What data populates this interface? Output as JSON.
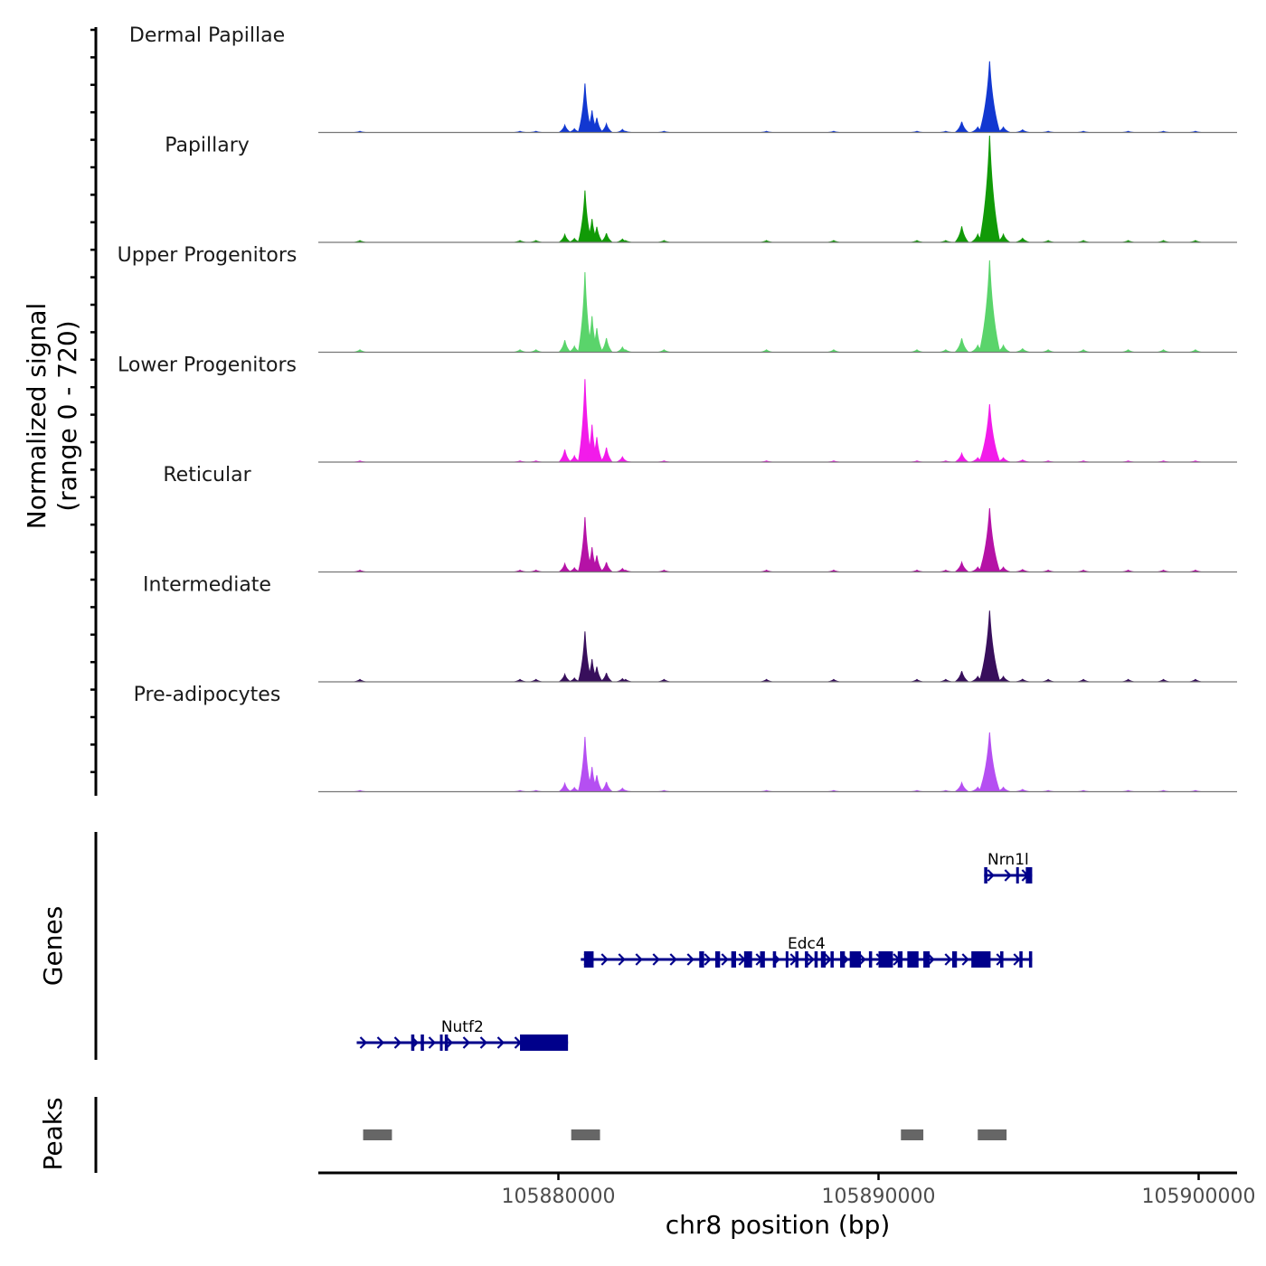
{
  "chart_data": {
    "type": "area",
    "title": "",
    "region": "chr8",
    "xlabel": "chr8 position (bp)",
    "xlim": [
      105872500,
      105901200
    ],
    "xticks": [
      105880000,
      105890000,
      105900000
    ],
    "xtick_labels": [
      "105880000",
      "105890000",
      "105900000"
    ],
    "coverage_ylabel": [
      "Normalized signal",
      "(range 0 - 720)"
    ],
    "ylim": [
      0,
      720
    ],
    "tracks": [
      {
        "name": "Dermal Papillae",
        "color": "#1238d1",
        "peak1": 330,
        "peak2": 480
      },
      {
        "name": "Papillary",
        "color": "#119a07",
        "peak1": 350,
        "peak2": 720
      },
      {
        "name": "Upper Progenitors",
        "color": "#5ad46b",
        "peak1": 540,
        "peak2": 620
      },
      {
        "name": "Lower Progenitors",
        "color": "#f21bea",
        "peak1": 560,
        "peak2": 390
      },
      {
        "name": "Reticular",
        "color": "#b512a6",
        "peak1": 370,
        "peak2": 430
      },
      {
        "name": "Intermediate",
        "color": "#380f5c",
        "peak1": 340,
        "peak2": 480
      },
      {
        "name": "Pre-adipocytes",
        "color": "#b54ff2",
        "peak1": 370,
        "peak2": 400
      }
    ],
    "genes_label": "Genes",
    "peaks_label": "Peaks",
    "genes": [
      {
        "name": "Nrn1l",
        "start": 105893300,
        "end": 105894800,
        "strand": "+",
        "exons": [
          [
            105893300,
            105893400
          ],
          [
            105894600,
            105894800
          ],
          [
            105894300,
            105894350
          ]
        ]
      },
      {
        "name": "Edc4",
        "start": 105880700,
        "end": 105894800,
        "strand": "+",
        "exons": [
          [
            105880800,
            105881100
          ],
          [
            105884400,
            105884550
          ],
          [
            105884900,
            105885050
          ],
          [
            105885400,
            105885550
          ],
          [
            105885800,
            105886050
          ],
          [
            105886300,
            105886450
          ],
          [
            105886700,
            105886800
          ],
          [
            105887100,
            105887150
          ],
          [
            105887400,
            105887500
          ],
          [
            105887700,
            105887800
          ],
          [
            105888000,
            105888100
          ],
          [
            105888200,
            105888350
          ],
          [
            105888500,
            105888600
          ],
          [
            105888800,
            105888950
          ],
          [
            105889100,
            105889450
          ],
          [
            105889700,
            105889800
          ],
          [
            105890000,
            105890450
          ],
          [
            105890600,
            105890750
          ],
          [
            105890900,
            105891250
          ],
          [
            105891400,
            105891600
          ],
          [
            105892300,
            105892450
          ],
          [
            105892900,
            105893500
          ],
          [
            105893800,
            105893900
          ],
          [
            105894400,
            105894500
          ],
          [
            105894700,
            105894800
          ]
        ]
      },
      {
        "name": "Nutf2",
        "start": 105873700,
        "end": 105880300,
        "strand": "+",
        "exons": [
          [
            105875400,
            105875500
          ],
          [
            105875700,
            105875800
          ],
          [
            105876300,
            105876350
          ],
          [
            105876450,
            105876550
          ],
          [
            105878800,
            105880300
          ]
        ]
      }
    ],
    "peaks": [
      [
        105873900,
        105874800
      ],
      [
        105880400,
        105881300
      ],
      [
        105890700,
        105891400
      ],
      [
        105893100,
        105894000
      ]
    ]
  }
}
